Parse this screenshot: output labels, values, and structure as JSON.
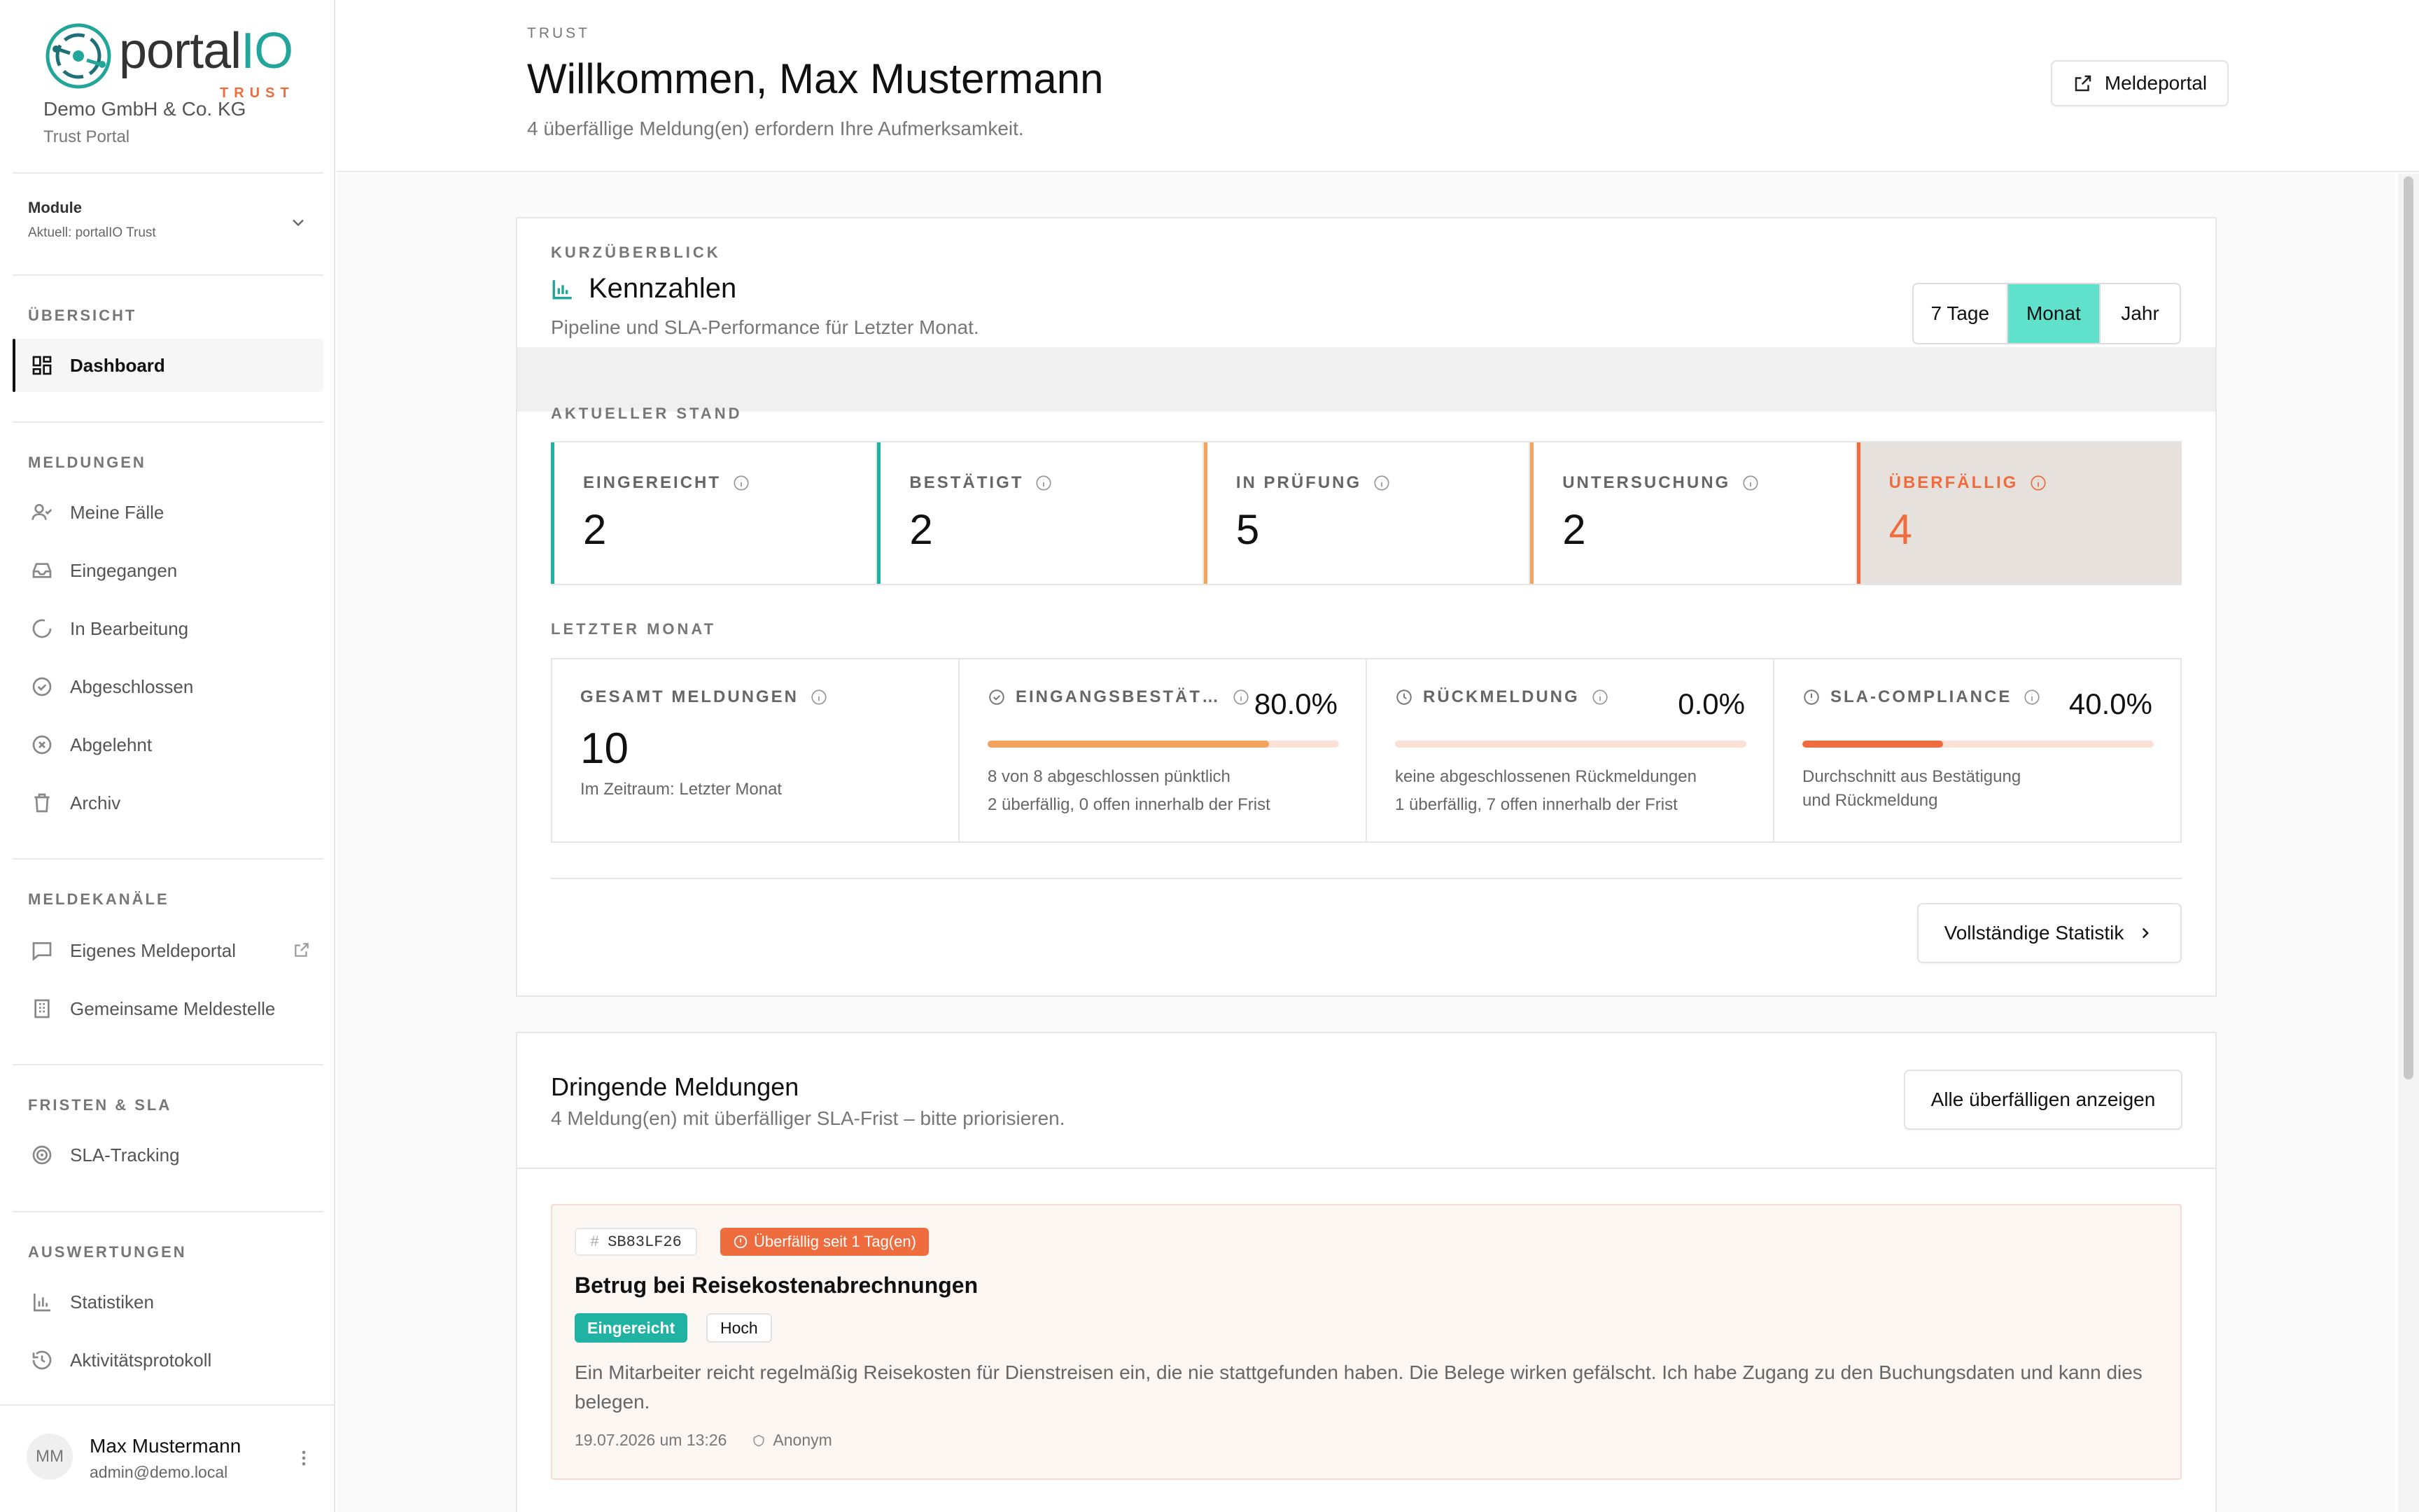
{
  "brand": {
    "logo_text_a": "portal",
    "logo_text_b": "IO",
    "logo_sub": "TRUST",
    "org_name": "Demo GmbH & Co. KG",
    "org_sub": "Trust Portal",
    "accent": "#22a59a",
    "orange": "#ef6c3e"
  },
  "module": {
    "title": "Module",
    "current": "Aktuell: portalIO Trust"
  },
  "nav": {
    "overview_label": "ÜBERSICHT",
    "dashboard": "Dashboard",
    "reports_label": "MELDUNGEN",
    "my_cases": "Meine Fälle",
    "incoming": "Eingegangen",
    "in_progress": "In Bearbeitung",
    "closed": "Abgeschlossen",
    "rejected": "Abgelehnt",
    "archive": "Archiv",
    "channels_label": "MELDEKANÄLE",
    "own_portal": "Eigenes Meldeportal",
    "shared_office": "Gemeinsame Meldestelle",
    "deadlines_label": "FRISTEN & SLA",
    "sla_tracking": "SLA-Tracking",
    "analysis_label": "AUSWERTUNGEN",
    "statistics": "Statistiken",
    "activity_log": "Aktivitätsprotokoll"
  },
  "user": {
    "initials": "MM",
    "name": "Max Mustermann",
    "email": "admin@demo.local"
  },
  "header": {
    "breadcrumb": "TRUST",
    "title": "Willkommen, Max Mustermann",
    "subtitle": "4 überfällige Meldung(en) erfordern Ihre Aufmerksamkeit.",
    "portal_button": "Meldeportal"
  },
  "kpi": {
    "eyebrow": "KURZÜBERBLICK",
    "title": "Kennzahlen",
    "subtitle": "Pipeline und SLA-Performance für Letzter Monat.",
    "range_options": [
      "7 Tage",
      "Monat",
      "Jahr"
    ],
    "range_selected": "Monat",
    "current_label": "AKTUELLER STAND",
    "stats": [
      {
        "label": "EINGEREICHT",
        "value": "2",
        "color": "#20b2a3"
      },
      {
        "label": "BESTÄTIGT",
        "value": "2",
        "color": "#20b2a3"
      },
      {
        "label": "IN PRÜFUNG",
        "value": "5",
        "color": "#f2a35d"
      },
      {
        "label": "UNTERSUCHUNG",
        "value": "2",
        "color": "#f2a35d"
      },
      {
        "label": "ÜBERFÄLLIG",
        "value": "4",
        "color": "#ef6c3e"
      }
    ],
    "period_label": "LETZTER MONAT",
    "total": {
      "label": "GESAMT MELDUNGEN",
      "value": "10",
      "note": "Im Zeitraum: Letzter Monat"
    },
    "ack": {
      "label": "EINGANGSBESTÄT…",
      "pct_text": "80.0%",
      "pct": 0.8,
      "color": "#f2a35d",
      "note1": "8 von 8 abgeschlossen pünktlich",
      "note2": "2 überfällig, 0 offen innerhalb der Frist"
    },
    "feedback": {
      "label": "RÜCKMELDUNG",
      "pct_text": "0.0%",
      "pct": 0.0,
      "color": "#ef6c3e",
      "note1": "keine abgeschlossenen Rückmeldungen",
      "note2": "1 überfällig, 7 offen innerhalb der Frist"
    },
    "sla": {
      "label": "SLA-COMPLIANCE",
      "pct_text": "40.0%",
      "pct": 0.4,
      "color": "#ef6c3e",
      "note1": "Durchschnitt aus Bestätigung",
      "note2": "und Rückmeldung"
    },
    "full_stats_button": "Vollständige Statistik"
  },
  "urgent": {
    "title": "Dringende Meldungen",
    "subtitle": "4 Meldung(en) mit überfälliger SLA-Frist – bitte priorisieren.",
    "show_all_button": "Alle überfälligen anzeigen",
    "items": [
      {
        "id": "SB83LF26",
        "overdue": "Überfällig seit 1 Tag(en)",
        "title": "Betrug bei Reisekostenabrechnungen",
        "status": "Eingereicht",
        "priority": "Hoch",
        "description": "Ein Mitarbeiter reicht regelmäßig Reisekosten für Dienstreisen ein, die nie stattgefunden haben. Die Belege wirken gefälscht. Ich habe Zugang zu den Buchungsdaten und kann dies belegen.",
        "date": "19.07.2026 um 13:26",
        "reporter": "Anonym"
      }
    ]
  }
}
